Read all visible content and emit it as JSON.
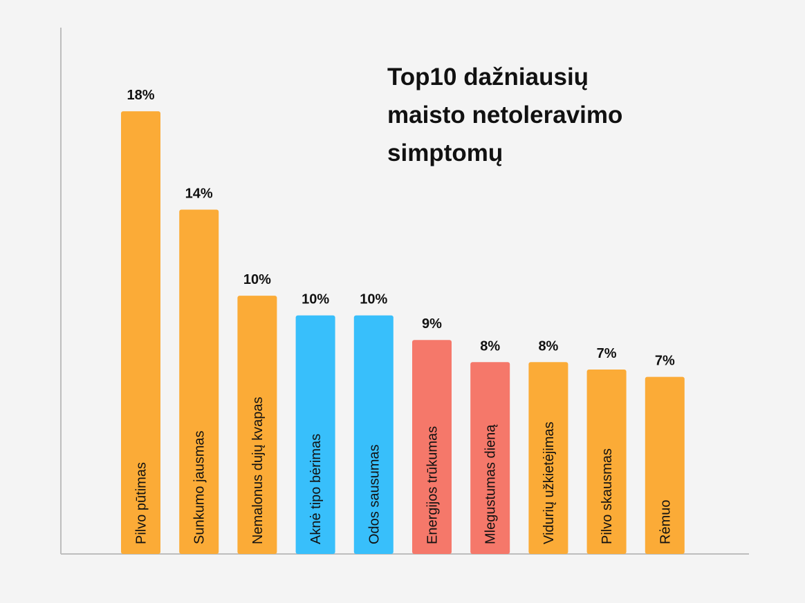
{
  "chart_data": {
    "type": "bar",
    "title_lines": [
      "Top10 dažniausių",
      "maisto netoleravimo",
      "simptomų"
    ],
    "categories": [
      "Pilvo pūtimas",
      "Sunkumo jausmas",
      "Nemalonus dujų kvapas",
      "Aknė tipo bėrimas",
      "Odos sausumas",
      "Energijos trūkumas",
      "Mlegustumas dieną",
      "Vidurių užkietėjimas",
      "Pilvo skausmas",
      "Rėmuo"
    ],
    "values": [
      18,
      14,
      10.5,
      9.7,
      9.7,
      8.7,
      7.8,
      7.8,
      7.5,
      7.2
    ],
    "value_labels": [
      "18%",
      "14%",
      "10%",
      "10%",
      "10%",
      "9%",
      "8%",
      "8%",
      "7%",
      "7%"
    ],
    "colors": [
      "#FBAB37",
      "#FBAB37",
      "#FBAB37",
      "#38BFFB",
      "#38BFFB",
      "#F5786A",
      "#F5786A",
      "#FBAB37",
      "#FBAB37",
      "#FBAB37"
    ],
    "xlabel": "",
    "ylabel": "",
    "ylim": [
      0,
      21.4
    ],
    "grid": false,
    "legend": "none"
  }
}
